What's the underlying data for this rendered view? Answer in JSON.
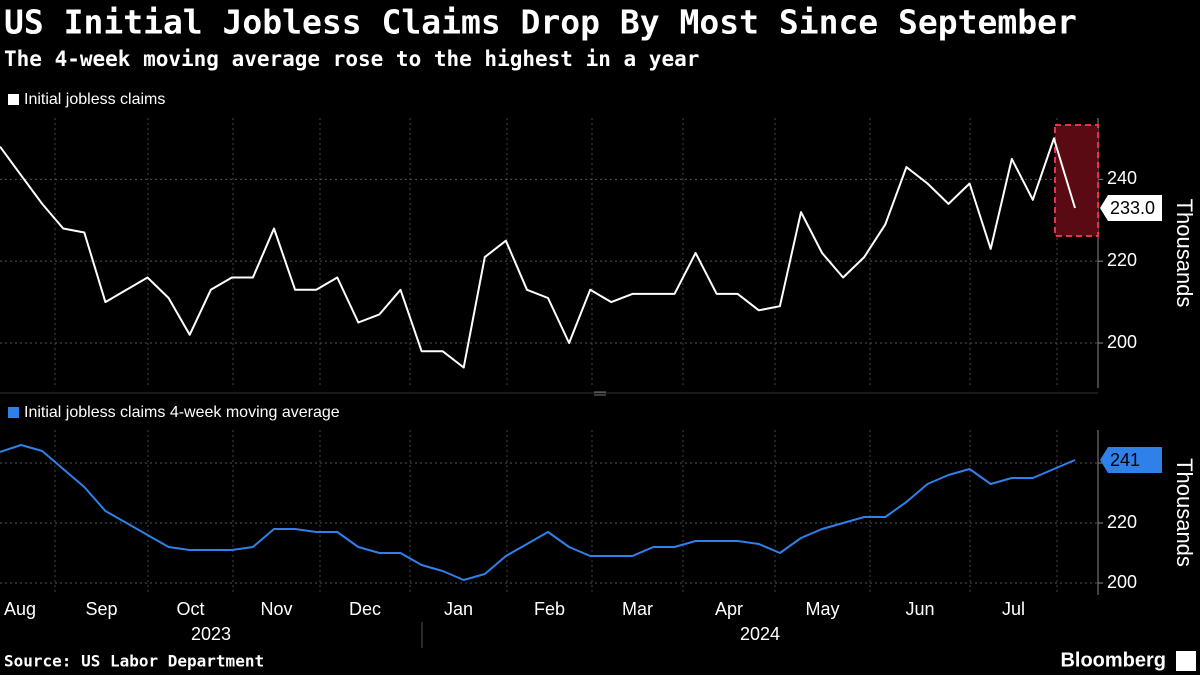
{
  "title": "US Initial Jobless Claims Drop By Most Since September",
  "subtitle": "The 4-week moving average rose to the highest in a year",
  "source": "Source: US Labor Department",
  "brand": "Bloomberg",
  "x_axis": {
    "months": [
      "Aug",
      "Sep",
      "Oct",
      "Nov",
      "Dec",
      "Jan",
      "Feb",
      "Mar",
      "Apr",
      "May",
      "Jun",
      "Jul"
    ],
    "years": [
      "2023",
      "2024"
    ]
  },
  "chart_data": [
    {
      "type": "line",
      "y_label": "Thousands",
      "ylim": [
        189,
        255
      ],
      "yticks": [
        200,
        220,
        240
      ],
      "grid": true,
      "series": [
        {
          "name": "Initial jobless claims",
          "color": "#ffffff",
          "values": [
            248,
            241,
            234,
            228,
            227,
            210,
            213,
            216,
            211,
            202,
            213,
            216,
            216,
            228,
            213,
            213,
            216,
            205,
            207,
            213,
            198,
            198,
            194,
            221,
            225,
            213,
            211,
            200,
            213,
            210,
            212,
            212,
            212,
            222,
            212,
            212,
            208,
            209,
            232,
            222,
            216,
            221,
            229,
            243,
            239,
            234,
            239,
            223,
            245,
            235,
            250,
            233
          ],
          "value_labels": [
            null,
            null,
            null,
            null,
            null,
            null,
            null,
            null,
            null,
            null,
            null,
            null,
            null,
            null,
            null,
            null,
            null,
            null,
            null,
            null,
            null,
            null,
            null,
            null,
            null,
            null,
            null,
            null,
            null,
            null,
            null,
            null,
            null,
            null,
            null,
            null,
            null,
            null,
            null,
            null,
            null,
            null,
            null,
            null,
            null,
            null,
            null,
            null,
            null,
            null,
            null,
            "233.0"
          ]
        }
      ]
    },
    {
      "type": "line",
      "y_label": "Thousands",
      "ylim": [
        196,
        251
      ],
      "yticks": [
        200,
        220,
        240
      ],
      "grid": true,
      "series": [
        {
          "name": "Initial jobless claims 4-week moving average",
          "color": "#2f80e8",
          "values": [
            243.7,
            246,
            244,
            238,
            232,
            224,
            220,
            216,
            212,
            211,
            211,
            211,
            212,
            218,
            218,
            217,
            217,
            212,
            210,
            210,
            206,
            204,
            201,
            203,
            209,
            213,
            217,
            212,
            209,
            209,
            209,
            212,
            212,
            214,
            214,
            214,
            213,
            210,
            215,
            218,
            220,
            222,
            222,
            227,
            233,
            236,
            238,
            233,
            235,
            235,
            238,
            241
          ]
        }
      ]
    }
  ]
}
